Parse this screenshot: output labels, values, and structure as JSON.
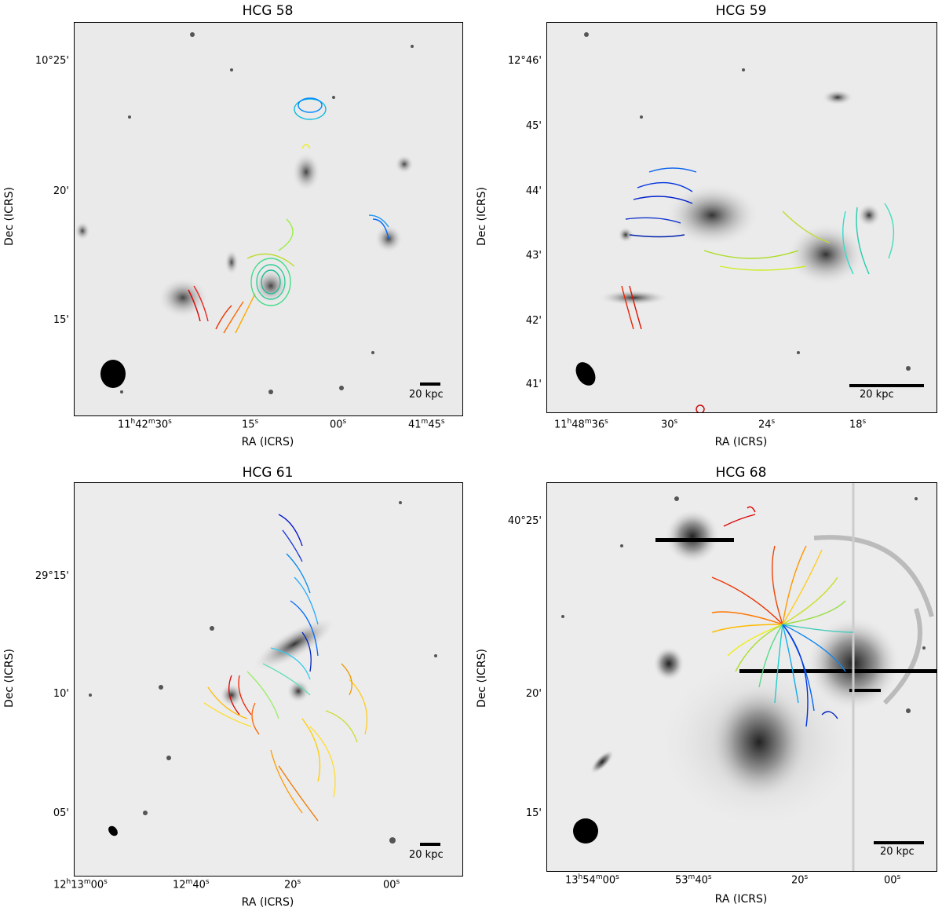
{
  "figure": {
    "axis_label_x": "RA (ICRS)",
    "axis_label_y": "Dec (ICRS)",
    "scale_bar_label": "20 kpc",
    "panels": [
      {
        "title": "HCG 58",
        "dec_ticks": [
          "10°25'",
          "20'",
          "15'"
        ],
        "ra_ticks": [
          "11h42m30s",
          "15s",
          "00s",
          "41m45s"
        ]
      },
      {
        "title": "HCG 59",
        "dec_ticks": [
          "12°46'",
          "45'",
          "44'",
          "43'",
          "42'",
          "41'"
        ],
        "ra_ticks": [
          "11h48m36s",
          "30s",
          "24s",
          "18s"
        ]
      },
      {
        "title": "HCG 61",
        "dec_ticks": [
          "29°15'",
          "10'",
          "05'"
        ],
        "ra_ticks": [
          "12h13m00s",
          "12m40s",
          "20s",
          "00s"
        ]
      },
      {
        "title": "HCG 68",
        "dec_ticks": [
          "40°25'",
          "20'",
          "15'"
        ],
        "ra_ticks": [
          "13h54m00s",
          "53m40s",
          "20s",
          "00s"
        ]
      }
    ]
  }
}
